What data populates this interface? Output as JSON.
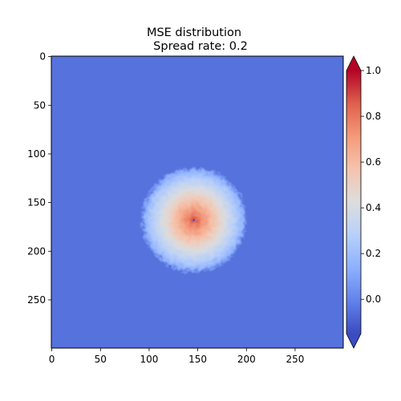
{
  "chart_data": {
    "type": "heatmap",
    "title": "MSE distribution",
    "subtitle": "Spread rate: 0.2",
    "xlabel": "",
    "ylabel": "",
    "x_range": [
      0,
      299
    ],
    "y_range": [
      0,
      299
    ],
    "y_inverted": true,
    "x_ticks": [
      "0",
      "50",
      "100",
      "150",
      "200",
      "250"
    ],
    "y_ticks": [
      "0",
      "50",
      "100",
      "150",
      "200",
      "250"
    ],
    "x_tick_values": [
      0,
      50,
      100,
      150,
      200,
      250
    ],
    "y_tick_values": [
      0,
      50,
      100,
      150,
      200,
      250
    ],
    "background_value": -0.05,
    "hotspot": {
      "center_x": 146,
      "center_y": 168,
      "peak_value": 0.88,
      "radius_to_background": 55
    },
    "colormap": "coolwarm",
    "colorbar": {
      "min": -0.15,
      "max": 1.0,
      "ticks": [
        "0.0",
        "0.2",
        "0.4",
        "0.6",
        "0.8",
        "1.0"
      ],
      "tick_values": [
        0.0,
        0.2,
        0.4,
        0.6,
        0.8,
        1.0
      ],
      "extend": "both",
      "placement": "right"
    },
    "grid": false
  }
}
